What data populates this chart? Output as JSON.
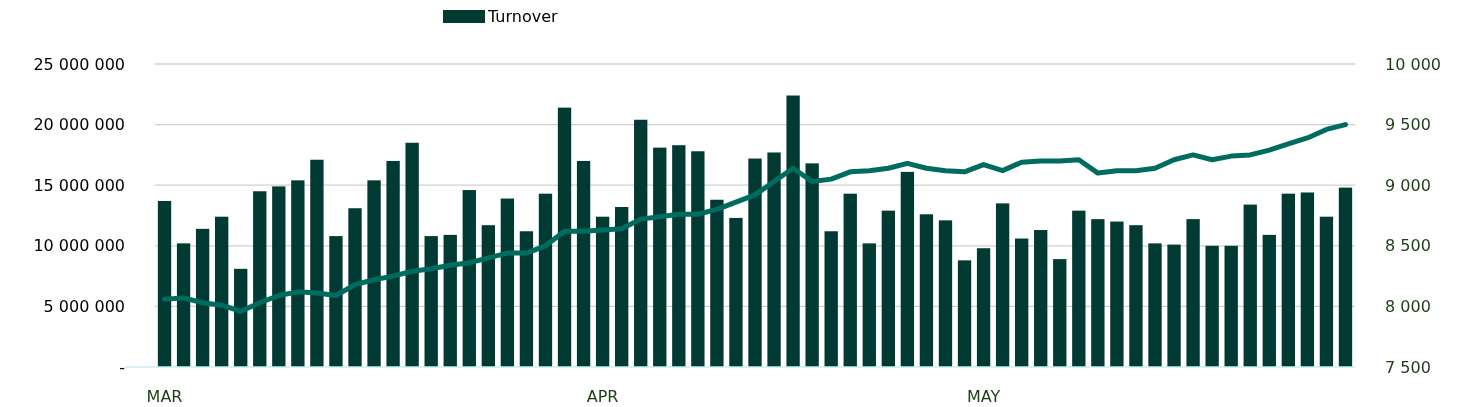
{
  "chart_data": {
    "type": "bar",
    "categories": [
      "MAR",
      null,
      null,
      null,
      null,
      null,
      null,
      null,
      null,
      null,
      null,
      null,
      null,
      null,
      null,
      null,
      null,
      null,
      null,
      null,
      null,
      null,
      null,
      "APR",
      null,
      null,
      null,
      null,
      null,
      null,
      null,
      null,
      null,
      null,
      null,
      null,
      null,
      null,
      null,
      null,
      null,
      null,
      null,
      "MAY",
      null,
      null,
      null,
      null,
      null,
      null,
      null,
      null,
      null,
      null,
      null,
      null,
      null,
      null,
      null,
      null,
      null,
      null,
      null
    ],
    "series": [
      {
        "name": "Turnover",
        "color": "#003a33",
        "values": [
          13700000,
          10200000,
          11400000,
          12400000,
          8100000,
          14500000,
          14900000,
          15400000,
          17100000,
          10800000,
          13100000,
          15400000,
          17000000,
          18500000,
          10800000,
          10900000,
          14600000,
          11700000,
          13900000,
          11200000,
          14300000,
          21400000,
          17000000,
          12400000,
          13200000,
          20400000,
          18100000,
          18300000,
          17800000,
          13800000,
          12300000,
          17200000,
          17700000,
          22400000,
          16800000,
          11200000,
          14300000,
          10200000,
          12900000,
          16100000,
          12600000,
          12100000,
          8800000,
          9800000,
          13500000,
          10600000,
          11300000,
          8900000,
          12900000,
          12200000,
          12000000,
          11700000,
          10200000,
          10100000,
          12200000,
          10000000,
          10000000,
          13400000,
          10900000,
          14300000,
          14400000,
          12400000,
          14800000
        ]
      },
      {
        "type": "line",
        "axis": "y2",
        "color": "#006b5f",
        "values": [
          8060,
          8070,
          8030,
          8010,
          7960,
          8030,
          8090,
          8120,
          8110,
          8090,
          8180,
          8220,
          8250,
          8290,
          8310,
          8340,
          8360,
          8400,
          8440,
          8440,
          8500,
          8620,
          8620,
          8630,
          8640,
          8720,
          8740,
          8760,
          8760,
          8800,
          8860,
          8920,
          9030,
          9140,
          9030,
          9050,
          9110,
          9120,
          9140,
          9180,
          9140,
          9120,
          9110,
          9170,
          9120,
          9190,
          9200,
          9200,
          9210,
          9100,
          9120,
          9120,
          9140,
          9210,
          9250,
          9210,
          9240,
          9250,
          9290,
          9340,
          9390,
          9460,
          9500
        ]
      }
    ],
    "ylim": [
      0,
      25000000
    ],
    "yticks": [
      {
        "value": 0,
        "label": "-"
      },
      {
        "value": 5000000,
        "label": "5 000 000"
      },
      {
        "value": 10000000,
        "label": "10 000 000"
      },
      {
        "value": 15000000,
        "label": "15 000 000"
      },
      {
        "value": 20000000,
        "label": "20 000 000"
      },
      {
        "value": 25000000,
        "label": "25 000 000"
      }
    ],
    "y2lim": [
      7500,
      10000
    ],
    "y2ticks": [
      {
        "value": 7500,
        "label": "7 500"
      },
      {
        "value": 8000,
        "label": "8 000"
      },
      {
        "value": 8500,
        "label": "8 500"
      },
      {
        "value": 9000,
        "label": "9 000"
      },
      {
        "value": 9500,
        "label": "9 500"
      },
      {
        "value": 10000,
        "label": "10 000"
      }
    ],
    "grid": "y",
    "legend": "top"
  }
}
